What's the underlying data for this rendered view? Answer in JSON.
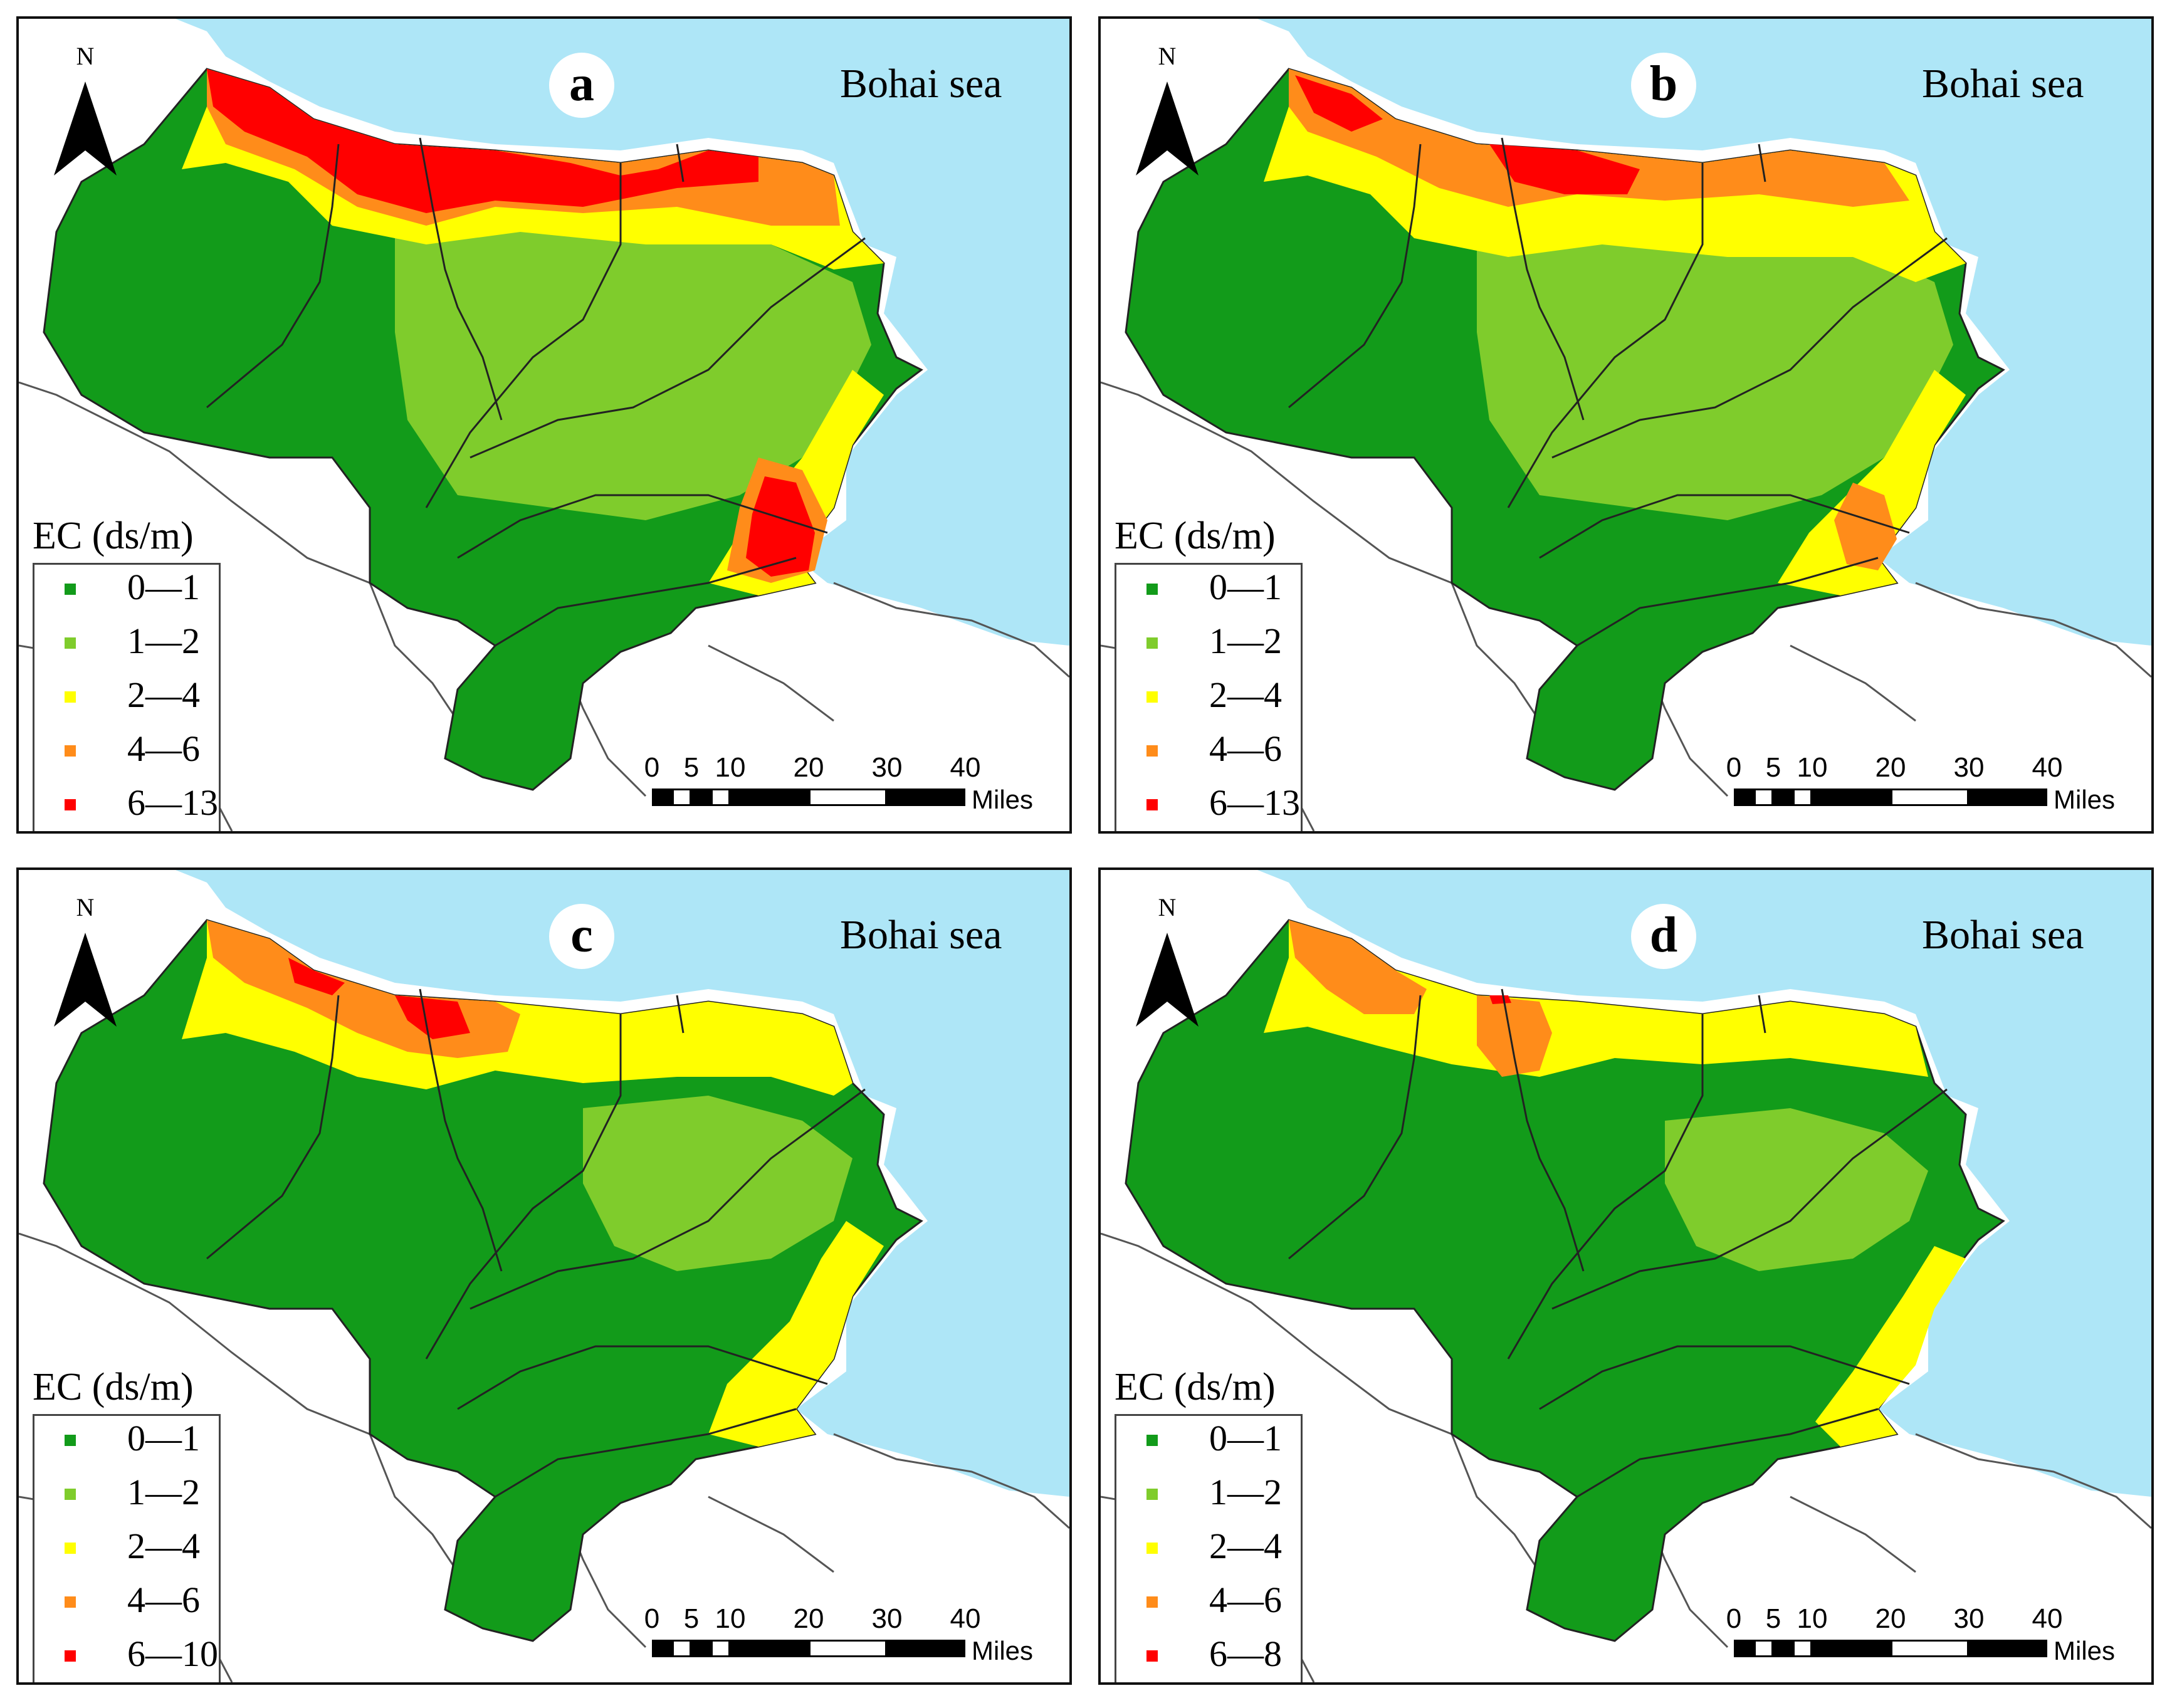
{
  "panels": [
    {
      "id": "a",
      "letter": "a",
      "sea_label": "Bohai sea",
      "north_label": "N",
      "legend_title": "EC (ds/m)",
      "legend": [
        {
          "label": "0—1",
          "color": "#129b1a"
        },
        {
          "label": "1—2",
          "color": "#7fcc2c"
        },
        {
          "label": "2—4",
          "color": "#ffff00"
        },
        {
          "label": "4—6",
          "color": "#ff8c1a"
        },
        {
          "label": "6—13",
          "color": "#ff0000"
        }
      ]
    },
    {
      "id": "b",
      "letter": "b",
      "sea_label": "Bohai sea",
      "north_label": "N",
      "legend_title": "EC (ds/m)",
      "legend": [
        {
          "label": "0—1",
          "color": "#129b1a"
        },
        {
          "label": "1—2",
          "color": "#7fcc2c"
        },
        {
          "label": "2—4",
          "color": "#ffff00"
        },
        {
          "label": "4—6",
          "color": "#ff8c1a"
        },
        {
          "label": "6—13",
          "color": "#ff0000"
        }
      ]
    },
    {
      "id": "c",
      "letter": "c",
      "sea_label": "Bohai sea",
      "north_label": "N",
      "legend_title": "EC (ds/m)",
      "legend": [
        {
          "label": "0—1",
          "color": "#129b1a"
        },
        {
          "label": "1—2",
          "color": "#7fcc2c"
        },
        {
          "label": "2—4",
          "color": "#ffff00"
        },
        {
          "label": "4—6",
          "color": "#ff8c1a"
        },
        {
          "label": "6—10",
          "color": "#ff0000"
        }
      ]
    },
    {
      "id": "d",
      "letter": "d",
      "sea_label": "Bohai sea",
      "north_label": "N",
      "legend_title": "EC (ds/m)",
      "legend": [
        {
          "label": "0—1",
          "color": "#129b1a"
        },
        {
          "label": "1—2",
          "color": "#7fcc2c"
        },
        {
          "label": "2—4",
          "color": "#ffff00"
        },
        {
          "label": "4—6",
          "color": "#ff8c1a"
        },
        {
          "label": "6—8",
          "color": "#ff0000"
        }
      ]
    }
  ],
  "scale": {
    "ticks": [
      "0",
      "5",
      "10",
      "20",
      "30",
      "40"
    ],
    "unit": "Miles"
  },
  "colors": {
    "sea": "#aee6f7",
    "land_outline": "#444444",
    "boundary": "#222222"
  }
}
